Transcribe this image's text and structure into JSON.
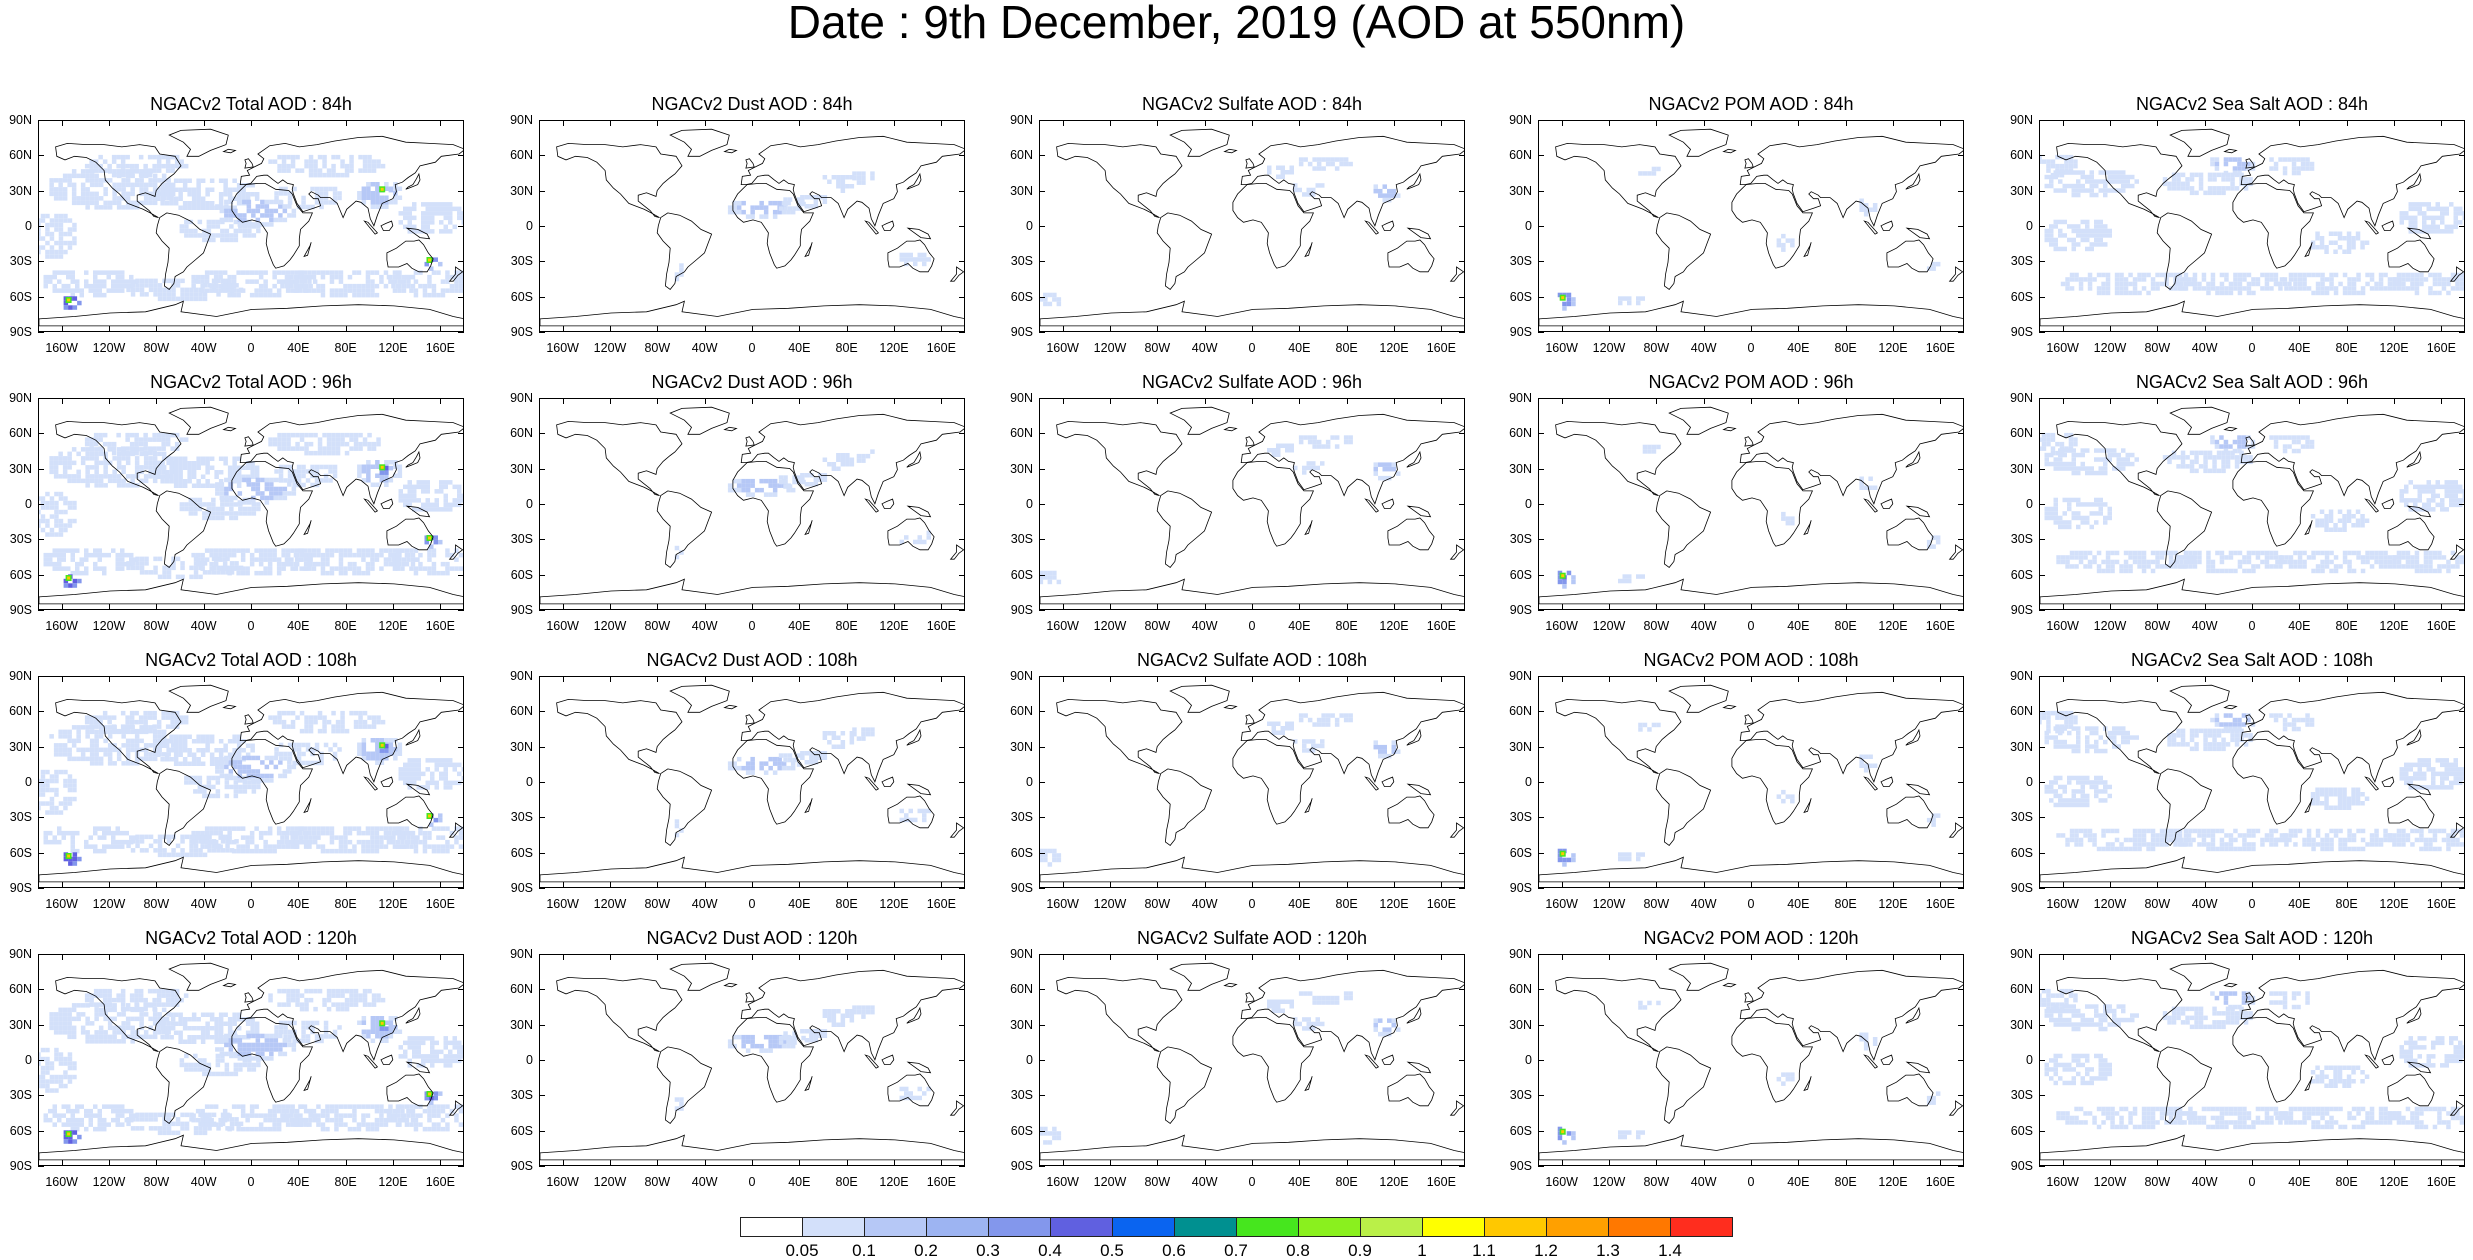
{
  "title": "Date : 9th December, 2019 (AOD at 550nm)",
  "panels": [
    [
      {
        "title": "NGACv2 Total AOD : 84h",
        "species": "total"
      },
      {
        "title": "NGACv2 Dust AOD : 84h",
        "species": "dust"
      },
      {
        "title": "NGACv2 Sulfate AOD : 84h",
        "species": "sulfate"
      },
      {
        "title": "NGACv2 POM AOD : 84h",
        "species": "pom"
      },
      {
        "title": "NGACv2 Sea Salt AOD : 84h",
        "species": "seasalt"
      }
    ],
    [
      {
        "title": "NGACv2 Total AOD : 96h",
        "species": "total"
      },
      {
        "title": "NGACv2 Dust AOD : 96h",
        "species": "dust"
      },
      {
        "title": "NGACv2 Sulfate AOD : 96h",
        "species": "sulfate"
      },
      {
        "title": "NGACv2 POM AOD : 96h",
        "species": "pom"
      },
      {
        "title": "NGACv2 Sea Salt AOD : 96h",
        "species": "seasalt"
      }
    ],
    [
      {
        "title": "NGACv2 Total AOD : 108h",
        "species": "total"
      },
      {
        "title": "NGACv2 Dust AOD : 108h",
        "species": "dust"
      },
      {
        "title": "NGACv2 Sulfate AOD : 108h",
        "species": "sulfate"
      },
      {
        "title": "NGACv2 POM AOD : 108h",
        "species": "pom"
      },
      {
        "title": "NGACv2 Sea Salt AOD : 108h",
        "species": "seasalt"
      }
    ],
    [
      {
        "title": "NGACv2 Total AOD : 120h",
        "species": "total"
      },
      {
        "title": "NGACv2 Dust AOD : 120h",
        "species": "dust"
      },
      {
        "title": "NGACv2 Sulfate AOD : 120h",
        "species": "sulfate"
      },
      {
        "title": "NGACv2 POM AOD : 120h",
        "species": "pom"
      },
      {
        "title": "NGACv2 Sea Salt  AOD : 120h",
        "species": "seasalt"
      }
    ]
  ],
  "lat_labels": [
    "90N",
    "60N",
    "30N",
    "0",
    "30S",
    "60S",
    "90S"
  ],
  "lon_labels": [
    "160W",
    "120W",
    "80W",
    "40W",
    "0",
    "40E",
    "80E",
    "120E",
    "160E"
  ],
  "colorbar": {
    "labels": [
      "0.05",
      "0.1",
      "0.2",
      "0.3",
      "0.4",
      "0.5",
      "0.6",
      "0.7",
      "0.8",
      "0.9",
      "1",
      "1.1",
      "1.2",
      "1.3",
      "1.4"
    ],
    "colors": [
      "#ffffff",
      "#d3e0fa",
      "#b6c8f6",
      "#9db4f2",
      "#8397ec",
      "#6060e0",
      "#0a64f0",
      "#009090",
      "#46e61e",
      "#8af01e",
      "#baf048",
      "#ffff00",
      "#ffc800",
      "#ffa000",
      "#ff7800",
      "#ff2d1e"
    ]
  },
  "colors": {
    "land_outline": "#000000",
    "aerosol_light": "#d3e0fa",
    "aerosol_mid": "#b6c8f6",
    "aerosol_high": "#8397ec"
  }
}
